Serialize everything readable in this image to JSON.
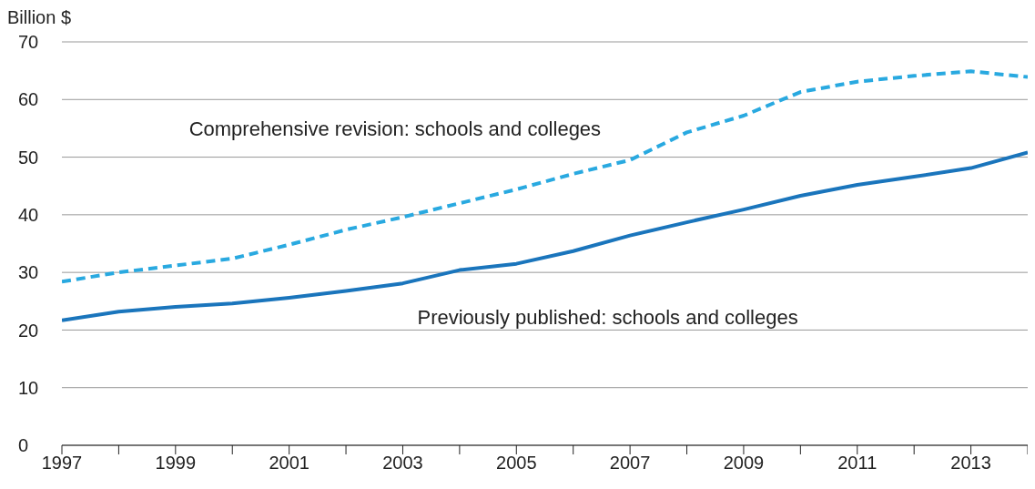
{
  "chart_data": {
    "type": "line",
    "ylabel": "Billion $",
    "x": [
      1997,
      1998,
      1999,
      2000,
      2001,
      2002,
      2003,
      2004,
      2005,
      2006,
      2007,
      2008,
      2009,
      2010,
      2011,
      2012,
      2013,
      2014
    ],
    "series": [
      {
        "name": "Comprehensive revision: schools and colleges",
        "color": "#29a9e0",
        "line_style": "dashed",
        "values": [
          28.4,
          30.0,
          31.2,
          32.4,
          34.8,
          37.4,
          39.6,
          42.0,
          44.4,
          47.1,
          49.5,
          54.3,
          57.2,
          61.3,
          63.1,
          64.1,
          64.9,
          63.9
        ]
      },
      {
        "name": "Previously published: schools and colleges",
        "color": "#1a75bc",
        "line_style": "solid",
        "values": [
          21.7,
          23.2,
          24.0,
          24.6,
          25.6,
          26.8,
          28.1,
          30.4,
          31.5,
          33.7,
          36.4,
          38.7,
          40.9,
          43.3,
          45.2,
          46.6,
          48.1,
          50.8
        ]
      }
    ],
    "xlim": [
      1997,
      2014
    ],
    "xticks": [
      1997,
      {
        "value": 1998,
        "label": null
      },
      1999,
      {
        "value": 2000,
        "label": null
      },
      2001,
      {
        "value": 2002,
        "label": null
      },
      2003,
      {
        "value": 2004,
        "label": null
      },
      2005,
      {
        "value": 2006,
        "label": null
      },
      2007,
      {
        "value": 2008,
        "label": null
      },
      2009,
      {
        "value": 2010,
        "label": null
      },
      2011,
      {
        "value": 2012,
        "label": null
      },
      2013,
      {
        "value": 2014,
        "label": null
      }
    ],
    "ylim": [
      0,
      70
    ],
    "yticks": [
      0,
      10,
      20,
      30,
      40,
      50,
      60,
      70
    ],
    "grid": "y",
    "legend": false,
    "marker": "none"
  }
}
